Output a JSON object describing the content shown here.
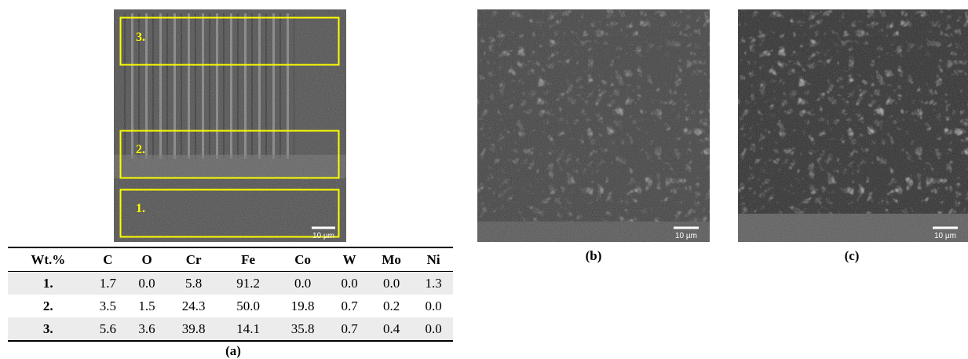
{
  "panel_a": {
    "regions": [
      "3.",
      "2.",
      "1."
    ],
    "scale_bar": "10 µm",
    "caption": "(a)"
  },
  "table": {
    "header": [
      "Wt.%",
      "C",
      "O",
      "Cr",
      "Fe",
      "Co",
      "W",
      "Mo",
      "Ni"
    ],
    "rows": [
      [
        "1.",
        "1.7",
        "0.0",
        "5.8",
        "91.2",
        "0.0",
        "0.0",
        "0.0",
        "1.3"
      ],
      [
        "2.",
        "3.5",
        "1.5",
        "24.3",
        "50.0",
        "19.8",
        "0.7",
        "0.2",
        "0.0"
      ],
      [
        "3.",
        "5.6",
        "3.6",
        "39.8",
        "14.1",
        "35.8",
        "0.7",
        "0.4",
        "0.0"
      ]
    ]
  },
  "panel_b": {
    "scale_bar": "10 µm",
    "caption": "(b)"
  },
  "panel_c": {
    "scale_bar": "10 µm",
    "caption": "(c)"
  }
}
